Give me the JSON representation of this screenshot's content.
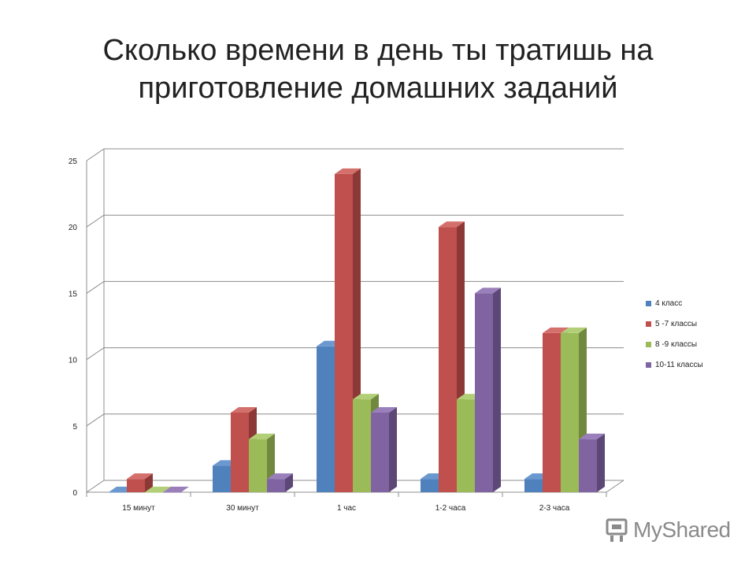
{
  "slide": {
    "title_lines": [
      "Сколько времени в день ты тратишь на",
      "приготовление домашних заданий"
    ]
  },
  "watermark": {
    "text": "MyShared"
  },
  "chart_data": {
    "type": "bar",
    "categories": [
      "15 минут",
      "30 минут",
      "1 час",
      "1-2 часа",
      "2-3 часа"
    ],
    "series": [
      {
        "name": "4 класс",
        "color": "#4f81bd",
        "top": "#6a98cf",
        "side": "#385d8a",
        "values": [
          0,
          2,
          11,
          1,
          1
        ]
      },
      {
        "name": "5 -7 классы",
        "color": "#c0504d",
        "top": "#d4706c",
        "side": "#8c3836",
        "values": [
          1,
          6,
          24,
          20,
          12
        ]
      },
      {
        "name": "8 -9 классы",
        "color": "#9bbb59",
        "top": "#b2cf78",
        "side": "#71893f",
        "values": [
          0,
          4,
          7,
          7,
          12
        ]
      },
      {
        "name": "10-11 классы",
        "color": "#8064a2",
        "top": "#9a7fbb",
        "side": "#5c4776",
        "values": [
          0,
          1,
          6,
          15,
          4
        ]
      }
    ],
    "yticks": [
      0,
      5,
      10,
      15,
      20,
      25
    ],
    "ylim": [
      0,
      25
    ],
    "grid": true,
    "legend": "right",
    "style": "3d-clustered-column"
  }
}
